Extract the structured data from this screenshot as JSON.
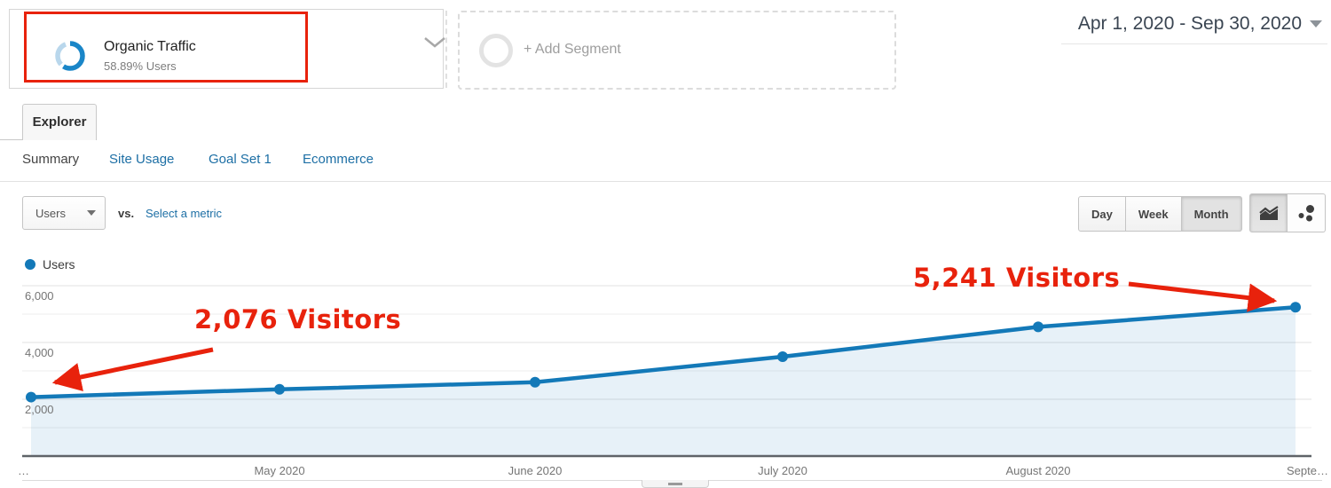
{
  "segment_bar": {
    "segment_chip": {
      "title": "Organic Traffic",
      "subtitle": "58.89% Users"
    },
    "add_segment_label": "+ Add Segment",
    "date_range": "Apr 1, 2020 - Sep 30, 2020"
  },
  "tabs": {
    "main_tab": "Explorer",
    "sub_tabs": [
      "Summary",
      "Site Usage",
      "Goal Set 1",
      "Ecommerce"
    ],
    "active_sub_tab": "Summary"
  },
  "toolbar": {
    "metric_selector": "Users",
    "vs_label": "vs.",
    "select_metric_label": "Select a metric",
    "granularity": [
      "Day",
      "Week",
      "Month"
    ],
    "active_granularity": "Month"
  },
  "legend": {
    "label": "Users"
  },
  "icons": {
    "segment_donut": "donut-progress-icon",
    "chart_type_left": "line-chart-icon",
    "chart_type_right": "motion-chart-icon"
  },
  "colors": {
    "series_blue": "#1379b8",
    "series_fill_opacity": 0.1,
    "link_blue": "#1d6fa5",
    "annotation_red": "#e8220c",
    "axis_line": "#5f6368",
    "grid_major": "#e0e0e0",
    "grid_minor": "#eeeeee",
    "donut_blue": "#1a86c8",
    "donut_light": "#b9d7ec"
  },
  "chart_data": {
    "type": "area",
    "title": "Users over time (monthly)",
    "x": [
      "Apr 2020",
      "May 2020",
      "Jun 2020",
      "Jul 2020",
      "Aug 2020",
      "Sep 2020"
    ],
    "x_tick_labels": [
      "…",
      "May 2020",
      "June 2020",
      "July 2020",
      "August 2020",
      "Septe…"
    ],
    "series": [
      {
        "name": "Users",
        "values": [
          2076,
          2350,
          2600,
          3500,
          4550,
          5241
        ]
      }
    ],
    "ylim": [
      0,
      6000
    ],
    "y_ticks": [
      2000,
      4000,
      6000
    ],
    "y_tick_labels": [
      "2,000",
      "4,000",
      "6,000"
    ],
    "gridline_step": 1000,
    "grid": true,
    "legend_position": "top-left",
    "annotations": [
      {
        "text": "2,076 Visitors",
        "month": "Apr 2020",
        "value": 2076
      },
      {
        "text": "5,241 Visitors",
        "month": "Sep 2020",
        "value": 5241
      }
    ]
  }
}
